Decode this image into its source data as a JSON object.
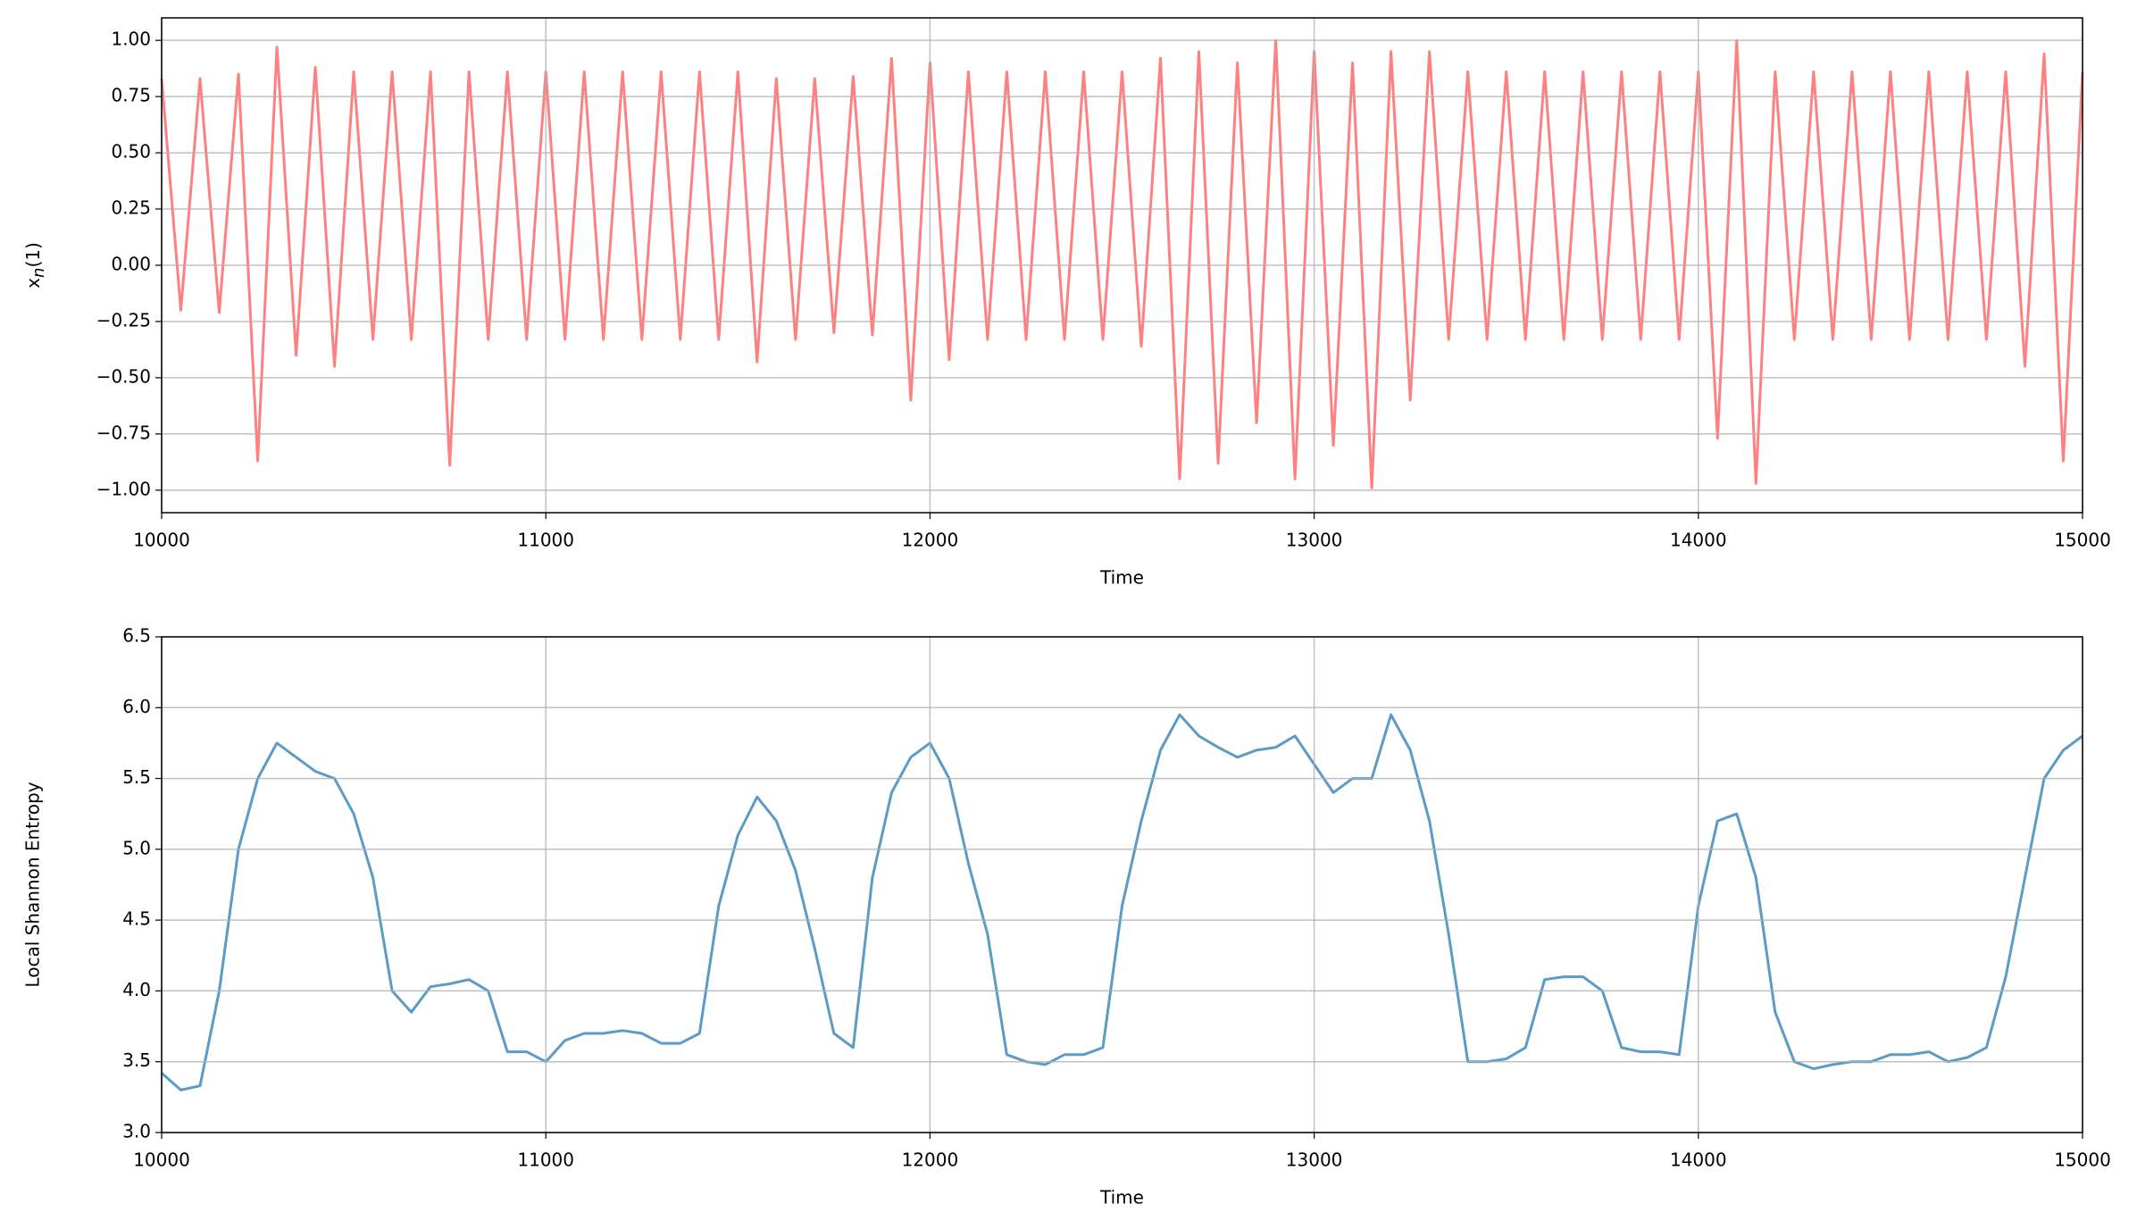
{
  "chart_data": [
    {
      "type": "line",
      "xlabel": "Time",
      "ylabel_parts": [
        "x",
        "n",
        "(1)"
      ],
      "color": "#ff8080",
      "grid": true,
      "xlim": [
        10000,
        15000
      ],
      "xticks": [
        10000,
        11000,
        12000,
        13000,
        14000,
        15000
      ],
      "ylim": [
        -1.1,
        1.1
      ],
      "yticks": [
        {
          "value": -1,
          "label": "−1.00"
        },
        {
          "value": -0.75,
          "label": "−0.75"
        },
        {
          "value": -0.5,
          "label": "−0.50"
        },
        {
          "value": -0.25,
          "label": "−0.25"
        },
        {
          "value": 0,
          "label": "0.00"
        },
        {
          "value": 0.25,
          "label": "0.25"
        },
        {
          "value": 0.5,
          "label": "0.50"
        },
        {
          "value": 0.75,
          "label": "0.75"
        },
        {
          "value": 1,
          "label": "1.00"
        }
      ],
      "x": [
        10000,
        10050,
        10100,
        10150,
        10200,
        10250,
        10300,
        10350,
        10400,
        10450,
        10500,
        10550,
        10600,
        10650,
        10700,
        10750,
        10800,
        10850,
        10900,
        10950,
        11000,
        11050,
        11100,
        11150,
        11200,
        11250,
        11300,
        11350,
        11400,
        11450,
        11500,
        11550,
        11600,
        11650,
        11700,
        11750,
        11800,
        11850,
        11900,
        11950,
        12000,
        12050,
        12100,
        12150,
        12200,
        12250,
        12300,
        12350,
        12400,
        12450,
        12500,
        12550,
        12600,
        12650,
        12700,
        12750,
        12800,
        12850,
        12900,
        12950,
        13000,
        13050,
        13100,
        13150,
        13200,
        13250,
        13300,
        13350,
        13400,
        13450,
        13500,
        13550,
        13600,
        13650,
        13700,
        13750,
        13800,
        13850,
        13900,
        13950,
        14000,
        14050,
        14100,
        14150,
        14200,
        14250,
        14300,
        14350,
        14400,
        14450,
        14500,
        14550,
        14600,
        14650,
        14700,
        14750,
        14800,
        14850,
        14900,
        14950,
        15000
      ],
      "values": [
        0.83,
        -0.2,
        0.83,
        -0.21,
        0.85,
        -0.87,
        0.97,
        -0.4,
        0.88,
        -0.45,
        0.86,
        -0.33,
        0.86,
        -0.33,
        0.86,
        -0.89,
        0.86,
        -0.33,
        0.86,
        -0.33,
        0.86,
        -0.33,
        0.86,
        -0.33,
        0.86,
        -0.33,
        0.86,
        -0.33,
        0.86,
        -0.33,
        0.86,
        -0.43,
        0.83,
        -0.33,
        0.83,
        -0.3,
        0.84,
        -0.31,
        0.92,
        -0.6,
        0.9,
        -0.42,
        0.86,
        -0.33,
        0.86,
        -0.33,
        0.86,
        -0.33,
        0.86,
        -0.33,
        0.86,
        -0.36,
        0.92,
        -0.95,
        0.95,
        -0.88,
        0.9,
        -0.7,
        1.0,
        -0.95,
        0.95,
        -0.8,
        0.9,
        -0.99,
        0.95,
        -0.6,
        0.95,
        -0.33,
        0.86,
        -0.33,
        0.86,
        -0.33,
        0.86,
        -0.33,
        0.86,
        -0.33,
        0.86,
        -0.33,
        0.86,
        -0.33,
        0.86,
        -0.77,
        1.0,
        -0.97,
        0.86,
        -0.33,
        0.86,
        -0.33,
        0.86,
        -0.33,
        0.86,
        -0.33,
        0.86,
        -0.33,
        0.86,
        -0.33,
        0.86,
        -0.45,
        0.94,
        -0.87,
        0.86
      ]
    },
    {
      "type": "line",
      "xlabel": "Time",
      "ylabel": "Local Shannon Entropy",
      "color": "#5b9bc8",
      "grid": true,
      "xlim": [
        10000,
        15000
      ],
      "xticks": [
        10000,
        11000,
        12000,
        13000,
        14000,
        15000
      ],
      "ylim": [
        3.0,
        6.5
      ],
      "yticks": [
        {
          "value": 3,
          "label": "3.0"
        },
        {
          "value": 3.5,
          "label": "3.5"
        },
        {
          "value": 4,
          "label": "4.0"
        },
        {
          "value": 4.5,
          "label": "4.5"
        },
        {
          "value": 5,
          "label": "5.0"
        },
        {
          "value": 5.5,
          "label": "5.5"
        },
        {
          "value": 6,
          "label": "6.0"
        },
        {
          "value": 6.5,
          "label": "6.5"
        }
      ],
      "x": [
        10000,
        10050,
        10100,
        10150,
        10200,
        10250,
        10300,
        10350,
        10400,
        10450,
        10500,
        10550,
        10600,
        10650,
        10700,
        10750,
        10800,
        10850,
        10900,
        10950,
        11000,
        11050,
        11100,
        11150,
        11200,
        11250,
        11300,
        11350,
        11400,
        11450,
        11500,
        11550,
        11600,
        11650,
        11700,
        11750,
        11800,
        11850,
        11900,
        11950,
        12000,
        12050,
        12100,
        12150,
        12200,
        12250,
        12300,
        12350,
        12400,
        12450,
        12500,
        12550,
        12600,
        12650,
        12700,
        12750,
        12800,
        12850,
        12900,
        12950,
        13000,
        13050,
        13100,
        13150,
        13200,
        13250,
        13300,
        13350,
        13400,
        13450,
        13500,
        13550,
        13600,
        13650,
        13700,
        13750,
        13800,
        13850,
        13900,
        13950,
        14000,
        14050,
        14100,
        14150,
        14200,
        14250,
        14300,
        14350,
        14400,
        14450,
        14500,
        14550,
        14600,
        14650,
        14700,
        14750,
        14800,
        14850,
        14900,
        14950,
        15000
      ],
      "values": [
        3.42,
        3.3,
        3.33,
        4.0,
        5.0,
        5.5,
        5.75,
        5.65,
        5.55,
        5.5,
        5.25,
        4.8,
        4.0,
        3.85,
        4.03,
        4.05,
        4.08,
        4.0,
        3.57,
        3.57,
        3.5,
        3.65,
        3.7,
        3.7,
        3.72,
        3.7,
        3.63,
        3.63,
        3.7,
        4.6,
        5.1,
        5.37,
        5.2,
        4.85,
        4.3,
        3.7,
        3.6,
        4.8,
        5.4,
        5.65,
        5.75,
        5.5,
        4.9,
        4.4,
        3.55,
        3.5,
        3.48,
        3.55,
        3.55,
        3.6,
        4.6,
        5.2,
        5.7,
        5.95,
        5.8,
        5.72,
        5.65,
        5.7,
        5.72,
        5.8,
        5.6,
        5.4,
        5.5,
        5.5,
        5.95,
        5.7,
        5.2,
        4.4,
        3.5,
        3.5,
        3.52,
        3.6,
        4.08,
        4.1,
        4.1,
        4.0,
        3.6,
        3.57,
        3.57,
        3.55,
        4.6,
        5.2,
        5.25,
        4.8,
        3.85,
        3.5,
        3.45,
        3.48,
        3.5,
        3.5,
        3.55,
        3.55,
        3.57,
        3.5,
        3.53,
        3.6,
        4.1,
        4.8,
        5.5,
        5.7,
        5.8
      ]
    }
  ]
}
